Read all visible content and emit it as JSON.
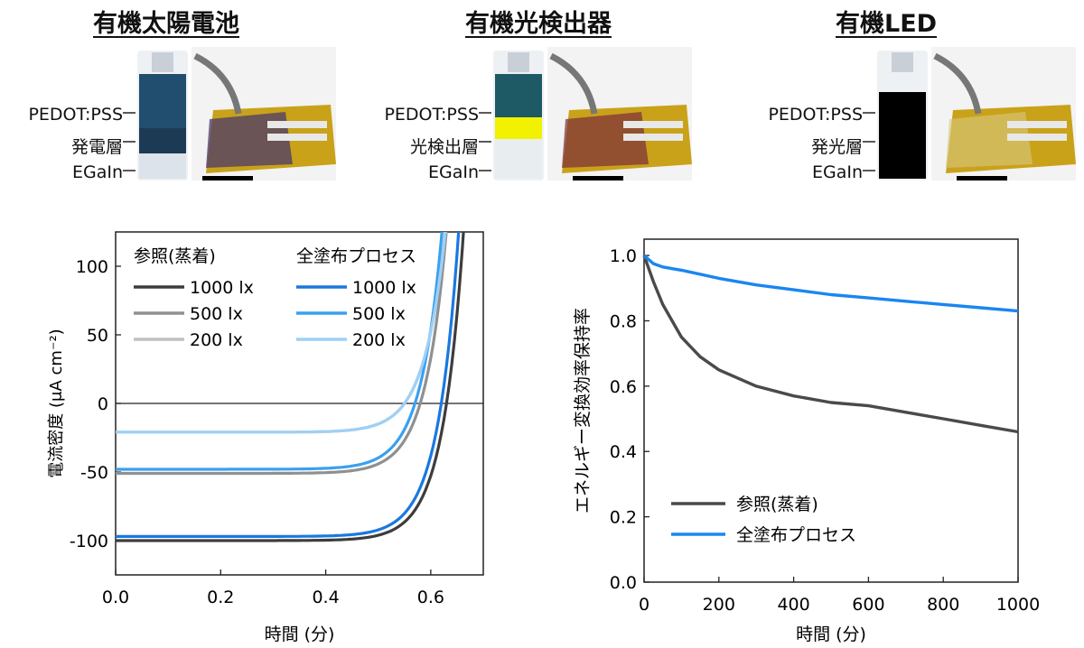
{
  "panels": [
    {
      "title": "有機太陽電池",
      "layers": [
        "PEDOT:PSS",
        "発電層",
        "EGaIn"
      ],
      "colors": {
        "top": "#214e6e",
        "middle": "#1d3a55",
        "bottom": "#dde3ea"
      }
    },
    {
      "title": "有機光検出器",
      "layers": [
        "PEDOT:PSS",
        "光検出層",
        "EGaIn"
      ],
      "colors": {
        "top": "#203a58",
        "middle": "#8a2530",
        "bottom": "#e3e5ea"
      }
    },
    {
      "title": "有機LED",
      "layers": [
        "PEDOT:PSS",
        "発光層",
        "EGaIn"
      ],
      "colors": {
        "top": "#1e5a66",
        "middle": "#f2f200",
        "bottom": "#e8eef0"
      }
    }
  ],
  "chart_data": [
    {
      "type": "line",
      "xlabel": "時間 (分)",
      "ylabel": "電流密度 (μA cm⁻²)",
      "xlim": [
        0,
        0.7
      ],
      "ylim": [
        -125,
        125
      ],
      "xticks": [
        "0.0",
        "0.2",
        "0.4",
        "0.6"
      ],
      "yticks": [
        "-100",
        "-50",
        "0",
        "50",
        "100"
      ],
      "legend_groups": [
        "参照(蒸着)",
        "全塗布プロセス"
      ],
      "series": [
        {
          "name": "1000 lx",
          "group": "参照(蒸着)",
          "color": "#3d3d3d",
          "isc": -100,
          "voc": 0.63,
          "n": 0.04
        },
        {
          "name": "500 lx",
          "group": "参照(蒸着)",
          "color": "#909090",
          "isc": -51,
          "voc": 0.58,
          "n": 0.04
        },
        {
          "name": "200 lx",
          "group": "参照(蒸着)",
          "color": "#c0c0c0",
          "isc": -21,
          "voc": 0.55,
          "n": 0.04
        },
        {
          "name": "1000 lx",
          "group": "全塗布プロセス",
          "color": "#1a78e0",
          "isc": -97,
          "voc": 0.62,
          "n": 0.04
        },
        {
          "name": "500 lx",
          "group": "全塗布プロセス",
          "color": "#3aa0f0",
          "isc": -48,
          "voc": 0.57,
          "n": 0.04
        },
        {
          "name": "200 lx",
          "group": "全塗布プロセス",
          "color": "#9ed0f6",
          "isc": -21,
          "voc": 0.55,
          "n": 0.04
        }
      ],
      "legend_position": "top-left",
      "grid": false
    },
    {
      "type": "line",
      "xlabel": "時間 (分)",
      "ylabel": "エネルギー変換効率保持率",
      "xlim": [
        0,
        1000
      ],
      "ylim": [
        0,
        1.05
      ],
      "xticks": [
        "0",
        "200",
        "400",
        "600",
        "800",
        "1000"
      ],
      "yticks": [
        "0.0",
        "0.2",
        "0.4",
        "0.6",
        "0.8",
        "1.0"
      ],
      "series": [
        {
          "name": "参照(蒸着)",
          "color": "#4a4a4a",
          "x": [
            0,
            25,
            50,
            100,
            150,
            200,
            300,
            400,
            500,
            600,
            700,
            800,
            900,
            1000
          ],
          "y": [
            1.0,
            0.92,
            0.85,
            0.75,
            0.69,
            0.65,
            0.6,
            0.57,
            0.55,
            0.54,
            0.52,
            0.5,
            0.48,
            0.46
          ]
        },
        {
          "name": "全塗布プロセス",
          "color": "#1a86f0",
          "x": [
            0,
            25,
            50,
            100,
            200,
            300,
            400,
            500,
            600,
            700,
            800,
            900,
            1000
          ],
          "y": [
            1.0,
            0.975,
            0.965,
            0.955,
            0.93,
            0.91,
            0.895,
            0.88,
            0.87,
            0.86,
            0.85,
            0.84,
            0.83
          ]
        }
      ],
      "legend_position": "bottom-left",
      "grid": false
    }
  ]
}
